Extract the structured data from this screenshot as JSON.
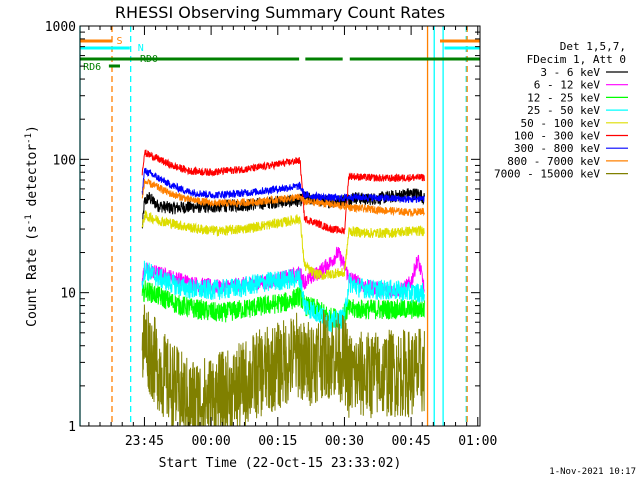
{
  "chart_data": {
    "type": "line",
    "title": "RHESSI Observing Summary Count Rates",
    "xlabel": "Start Time (22-Oct-15 23:33:02)",
    "ylabel": "Count Rate (s",
    "ylabel_sup1": "-1",
    "ylabel_mid": " detector",
    "ylabel_sup2": "-1",
    "ylabel_end": ")",
    "yscale": "log",
    "ylim": [
      1,
      1000
    ],
    "xlim_minutes": [
      -14.5,
      75.5
    ],
    "x_ticks": [
      {
        "t": 0,
        "label": "23:45"
      },
      {
        "t": 15,
        "label": "00:00"
      },
      {
        "t": 30,
        "label": "00:15"
      },
      {
        "t": 45,
        "label": "00:30"
      },
      {
        "t": 60,
        "label": "00:45"
      },
      {
        "t": 75,
        "label": "01:00"
      }
    ],
    "y_ticks": [
      {
        "v": 1,
        "label": "1"
      },
      {
        "v": 10,
        "label": "10"
      },
      {
        "v": 100,
        "label": "100"
      },
      {
        "v": 1000,
        "label": "1000"
      }
    ],
    "legend_header": [
      "Det 1,5,7,",
      "FDecim 1, Att 0"
    ],
    "series": [
      {
        "name": "3 - 6 keV",
        "color": "#000000",
        "points": [
          [
            -0.5,
            30
          ],
          [
            0,
            48
          ],
          [
            1,
            52
          ],
          [
            3,
            45
          ],
          [
            6,
            43
          ],
          [
            10,
            44
          ],
          [
            15,
            44
          ],
          [
            20,
            45
          ],
          [
            25,
            46
          ],
          [
            30,
            48
          ],
          [
            35,
            49
          ],
          [
            36,
            52
          ],
          [
            38,
            50
          ],
          [
            42,
            48
          ],
          [
            46,
            50
          ],
          [
            47,
            52
          ],
          [
            50,
            50
          ],
          [
            55,
            52
          ],
          [
            58,
            54
          ],
          [
            59,
            55
          ],
          [
            62,
            55
          ],
          [
            63,
            50
          ]
        ],
        "noise": 0.05
      },
      {
        "name": "6 - 12 keV",
        "color": "#ff00ff",
        "points": [
          [
            -0.5,
            12
          ],
          [
            0,
            15
          ],
          [
            3,
            14
          ],
          [
            8,
            12.5
          ],
          [
            12,
            11.5
          ],
          [
            17,
            11
          ],
          [
            22,
            11.5
          ],
          [
            27,
            12
          ],
          [
            32,
            13
          ],
          [
            35,
            14
          ],
          [
            36,
            12
          ],
          [
            39,
            14
          ],
          [
            42,
            17
          ],
          [
            43.5,
            20
          ],
          [
            45,
            16
          ],
          [
            46,
            13
          ],
          [
            50,
            11
          ],
          [
            54,
            10.5
          ],
          [
            58,
            10.5
          ],
          [
            60,
            12
          ],
          [
            61.5,
            18
          ],
          [
            62.5,
            13
          ],
          [
            63,
            10
          ]
        ],
        "noise": 0.06
      },
      {
        "name": "12 - 25 keV",
        "color": "#00ff00",
        "points": [
          [
            -0.5,
            9
          ],
          [
            0,
            10.5
          ],
          [
            3,
            9.5
          ],
          [
            8,
            8
          ],
          [
            12,
            7.5
          ],
          [
            17,
            7
          ],
          [
            22,
            7.5
          ],
          [
            27,
            8
          ],
          [
            32,
            8.5
          ],
          [
            35,
            9.5
          ],
          [
            36,
            8
          ],
          [
            39,
            7.5
          ],
          [
            42,
            6.5
          ],
          [
            44,
            6.5
          ],
          [
            45,
            7
          ],
          [
            46,
            7.5
          ],
          [
            50,
            7.5
          ],
          [
            55,
            7.5
          ],
          [
            60,
            7.5
          ],
          [
            63,
            7.5
          ]
        ],
        "noise": 0.08
      },
      {
        "name": "25 - 50 keV",
        "color": "#00ffff",
        "points": [
          [
            -0.5,
            12
          ],
          [
            0,
            15
          ],
          [
            3,
            13
          ],
          [
            8,
            11
          ],
          [
            12,
            10.5
          ],
          [
            17,
            10.5
          ],
          [
            22,
            11
          ],
          [
            27,
            12
          ],
          [
            32,
            12.5
          ],
          [
            35,
            13
          ],
          [
            36,
            8
          ],
          [
            39,
            7
          ],
          [
            42,
            6
          ],
          [
            45,
            6.5
          ],
          [
            46,
            12
          ],
          [
            48,
            11
          ],
          [
            52,
            10.5
          ],
          [
            56,
            10.5
          ],
          [
            60,
            10
          ],
          [
            63,
            10
          ]
        ],
        "noise": 0.08
      },
      {
        "name": "50 - 100 keV",
        "color": "#dddd00",
        "points": [
          [
            -0.5,
            30
          ],
          [
            0,
            38
          ],
          [
            3,
            35
          ],
          [
            8,
            32
          ],
          [
            12,
            30
          ],
          [
            17,
            29
          ],
          [
            22,
            30
          ],
          [
            27,
            32
          ],
          [
            32,
            34
          ],
          [
            35,
            36
          ],
          [
            36,
            16
          ],
          [
            38,
            14
          ],
          [
            40,
            13.5
          ],
          [
            43,
            14
          ],
          [
            45,
            14
          ],
          [
            46,
            29
          ],
          [
            50,
            28
          ],
          [
            55,
            28
          ],
          [
            60,
            29
          ],
          [
            63,
            29
          ]
        ],
        "noise": 0.04
      },
      {
        "name": "100 - 300 keV",
        "color": "#ff0000",
        "points": [
          [
            -0.5,
            80
          ],
          [
            0,
            112
          ],
          [
            2,
            105
          ],
          [
            6,
            90
          ],
          [
            10,
            82
          ],
          [
            15,
            80
          ],
          [
            20,
            83
          ],
          [
            25,
            86
          ],
          [
            30,
            92
          ],
          [
            35,
            98
          ],
          [
            36,
            36
          ],
          [
            39,
            33
          ],
          [
            42,
            30
          ],
          [
            45,
            29
          ],
          [
            46,
            75
          ],
          [
            50,
            73
          ],
          [
            55,
            72
          ],
          [
            60,
            73
          ],
          [
            63,
            73
          ]
        ],
        "noise": 0.03
      },
      {
        "name": "300 - 800 keV",
        "color": "#0000ff",
        "points": [
          [
            -0.5,
            55
          ],
          [
            0,
            82
          ],
          [
            2,
            76
          ],
          [
            6,
            64
          ],
          [
            10,
            57
          ],
          [
            15,
            54
          ],
          [
            20,
            55
          ],
          [
            25,
            57
          ],
          [
            30,
            60
          ],
          [
            35,
            63
          ],
          [
            36,
            54
          ],
          [
            40,
            52
          ],
          [
            44,
            51
          ],
          [
            46,
            52
          ],
          [
            50,
            52
          ],
          [
            55,
            51
          ],
          [
            60,
            50
          ],
          [
            63,
            51
          ]
        ],
        "noise": 0.03
      },
      {
        "name": "800 - 7000 keV",
        "color": "#ff8000",
        "points": [
          [
            -0.5,
            50
          ],
          [
            0,
            68
          ],
          [
            2,
            64
          ],
          [
            6,
            55
          ],
          [
            10,
            50
          ],
          [
            15,
            47
          ],
          [
            20,
            47
          ],
          [
            25,
            48
          ],
          [
            30,
            50
          ],
          [
            35,
            52
          ],
          [
            36,
            48
          ],
          [
            40,
            47
          ],
          [
            44,
            45
          ],
          [
            48,
            43
          ],
          [
            52,
            42
          ],
          [
            56,
            41
          ],
          [
            60,
            40
          ],
          [
            63,
            41
          ]
        ],
        "noise": 0.03
      },
      {
        "name": "7000 - 15000 keV",
        "color": "#808000",
        "points": [
          [
            -0.5,
            3.5
          ],
          [
            0,
            4.5
          ],
          [
            2,
            3.2
          ],
          [
            5,
            2.2
          ],
          [
            10,
            1.5
          ],
          [
            15,
            1.6
          ],
          [
            20,
            1.8
          ],
          [
            25,
            2.4
          ],
          [
            30,
            2.8
          ],
          [
            35,
            3.5
          ],
          [
            36,
            2.8
          ],
          [
            40,
            3.5
          ],
          [
            45,
            3.2
          ],
          [
            46,
            2.4
          ],
          [
            50,
            2.4
          ],
          [
            55,
            2.5
          ],
          [
            60,
            2.5
          ],
          [
            63,
            2.6
          ]
        ],
        "noise": 0.35
      }
    ],
    "status_bars": [
      {
        "label": "S",
        "color": "#ff8000",
        "segments": [
          [
            -14.5,
            -7.2
          ],
          [
            66.5,
            75.5
          ]
        ],
        "label_t": -6.3,
        "y": 1000
      },
      {
        "label": "N",
        "color": "#00ffff",
        "segments": [
          [
            -14.5,
            -3.3
          ],
          [
            67.5,
            75.5
          ]
        ],
        "label_t": -1.5,
        "y": 1000
      },
      {
        "label": "RD0",
        "color": "#008000",
        "segments": [
          [
            -14.5,
            34.8
          ],
          [
            36.2,
            44.6
          ],
          [
            46.2,
            75.5
          ]
        ],
        "label_t": -1.0,
        "y": 1000
      },
      {
        "label": "RD6",
        "color": "#008000",
        "segments": [
          [
            -8,
            -5.5
          ]
        ],
        "label_t": -13.8,
        "y": 1000
      }
    ],
    "vlines": [
      {
        "t": -14.5,
        "color": "#00ffff",
        "dash": false
      },
      {
        "t": -7.3,
        "color": "#ff8000",
        "dash": true
      },
      {
        "t": -3.1,
        "color": "#00ffff",
        "dash": true
      },
      {
        "t": 63.7,
        "color": "#ff8000",
        "dash": false
      },
      {
        "t": 65.2,
        "color": "#00ffff",
        "dash": false
      },
      {
        "t": 67.2,
        "color": "#00ffff",
        "dash": false
      },
      {
        "t": 72.4,
        "color": "#00ffff",
        "dash": true
      },
      {
        "t": 72.6,
        "color": "#ff8000",
        "dash": true
      }
    ],
    "footer": "1-Nov-2021 10:17",
    "grid": false,
    "legend_position": "right"
  }
}
